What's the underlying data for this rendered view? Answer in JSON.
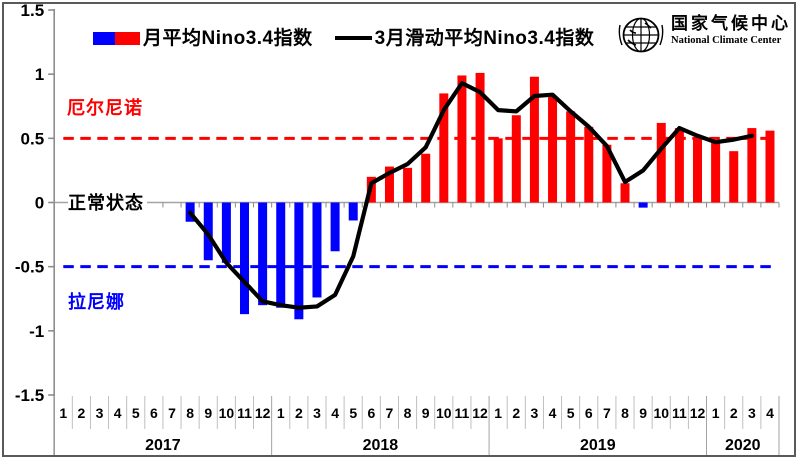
{
  "header": {
    "logo": {
      "org_cn": "国家气候中心",
      "org_en": "National Climate Center"
    }
  },
  "colors": {
    "positive_bar": "#ff0000",
    "negative_bar": "#0000ff",
    "running_mean_line": "#000000",
    "el_nino_threshold": "#ff0000",
    "la_nina_threshold": "#0000ff",
    "axis_gray": "#8c8c8c"
  },
  "chart_data": {
    "type": "bar+line combo",
    "title": "",
    "xlabel": "",
    "ylabel": "",
    "x_month_labels": [
      "1",
      "2",
      "3",
      "4",
      "5",
      "6",
      "7",
      "8",
      "9",
      "10",
      "11",
      "12",
      "1",
      "2",
      "3",
      "4",
      "5",
      "6",
      "7",
      "8",
      "9",
      "10",
      "11",
      "12",
      "1",
      "2",
      "3",
      "4",
      "5",
      "6",
      "7",
      "8",
      "9",
      "10",
      "11",
      "12",
      "1",
      "2",
      "3",
      "4"
    ],
    "year_groups": [
      {
        "label": "2017",
        "count": 12
      },
      {
        "label": "2018",
        "count": 12
      },
      {
        "label": "2019",
        "count": 12
      },
      {
        "label": "2020",
        "count": 4
      }
    ],
    "y_axis": {
      "min": -1.5,
      "max": 1.5,
      "tick_step": 0.5,
      "tick_labels": [
        "1.5",
        "1",
        "0.5",
        "0",
        "-0.5",
        "-1",
        "-1.5"
      ]
    },
    "series": [
      {
        "name": "月平均Nino3.4指数",
        "type": "bar",
        "positive_color": "#ff0000",
        "negative_color": "#0000ff",
        "values": [
          null,
          null,
          null,
          null,
          null,
          null,
          null,
          -0.15,
          -0.45,
          -0.47,
          -0.87,
          -0.8,
          -0.82,
          -0.91,
          -0.74,
          -0.38,
          -0.14,
          0.2,
          0.28,
          0.27,
          0.38,
          0.85,
          0.99,
          1.01,
          0.5,
          0.68,
          0.98,
          0.83,
          0.71,
          0.59,
          0.45,
          0.15,
          -0.04,
          0.62,
          0.58,
          0.5,
          0.48,
          0.4,
          0.58,
          0.56
        ]
      },
      {
        "name": "3月滑动平均Nino3.4指数",
        "type": "line",
        "color": "#000000",
        "values": [
          null,
          null,
          null,
          null,
          null,
          null,
          null,
          -0.08,
          -0.25,
          -0.47,
          -0.62,
          -0.77,
          -0.8,
          -0.82,
          -0.81,
          -0.72,
          -0.42,
          0.15,
          0.23,
          0.3,
          0.43,
          0.72,
          0.93,
          0.86,
          0.72,
          0.71,
          0.83,
          0.84,
          0.71,
          0.59,
          0.44,
          0.16,
          0.25,
          0.42,
          0.58,
          0.52,
          0.47,
          0.49,
          0.52,
          null
        ]
      }
    ],
    "reference_lines": [
      {
        "value": 0.5,
        "style": "dashed",
        "color": "#ff0000",
        "label": "厄尔尼诺"
      },
      {
        "value": -0.5,
        "style": "dashed",
        "color": "#0000ff",
        "label": "拉尼娜"
      },
      {
        "value": 0,
        "style": "solid",
        "color": "#a3a3a3",
        "label": "正常状态"
      }
    ],
    "legend_position": "top",
    "grid": "off"
  }
}
